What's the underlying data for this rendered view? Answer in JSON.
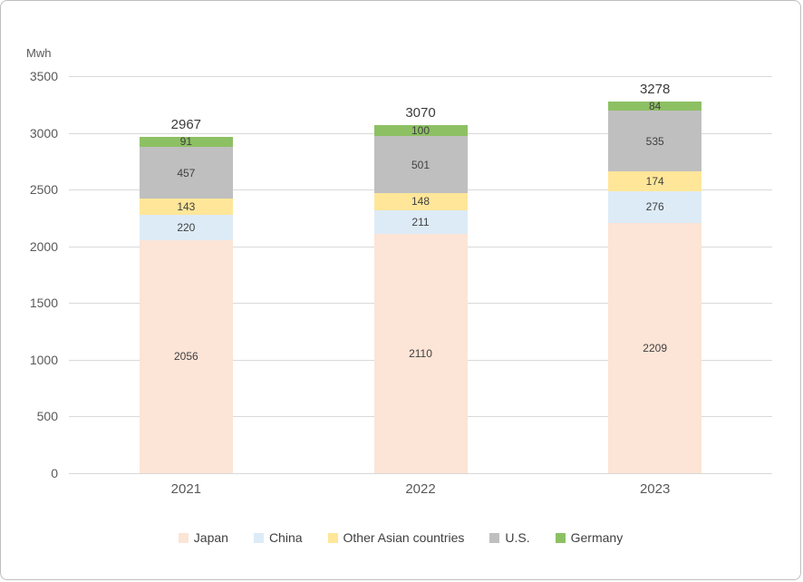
{
  "chart_data": {
    "type": "bar",
    "stacked": true,
    "title": "",
    "ylabel": "Mwh",
    "xlabel": "",
    "categories": [
      "2021",
      "2022",
      "2023"
    ],
    "series": [
      {
        "name": "Japan",
        "color": "#fce4d6",
        "values": [
          2056,
          2110,
          2209
        ]
      },
      {
        "name": "China",
        "color": "#ddebf7",
        "values": [
          220,
          211,
          276
        ]
      },
      {
        "name": "Other Asian countries",
        "color": "#ffe699",
        "values": [
          143,
          148,
          174
        ]
      },
      {
        "name": "U.S.",
        "color": "#bfbfbf",
        "values": [
          457,
          501,
          535
        ]
      },
      {
        "name": "Germany",
        "color": "#8dc063",
        "values": [
          91,
          100,
          84
        ]
      }
    ],
    "totals": [
      2967,
      3070,
      3278
    ],
    "ylim": [
      0,
      3500
    ],
    "ytick_step": 500,
    "grid": true,
    "legend_position": "bottom",
    "colors": {
      "gridline": "#d9d9d9",
      "axis_text": "#595959",
      "segment_label_text": "#404040",
      "total_label_text": "#3b3b3b"
    }
  }
}
